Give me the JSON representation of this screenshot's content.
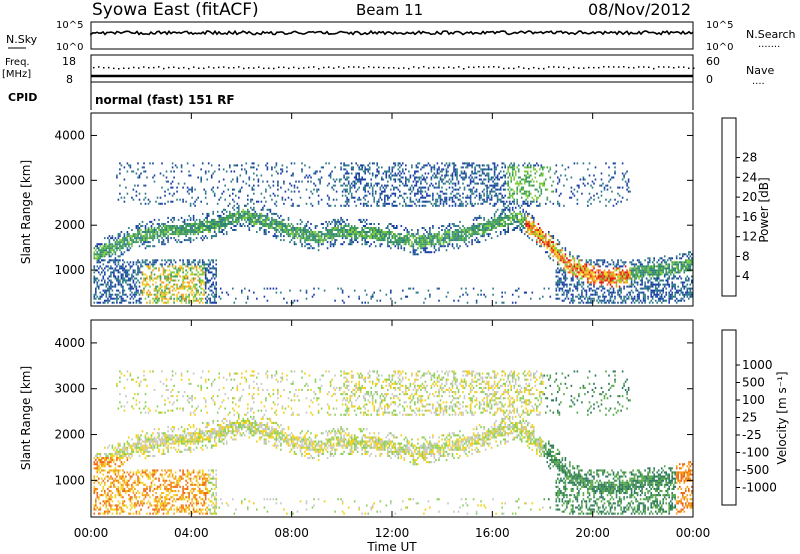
{
  "header": {
    "station": "Syowa East (fitACF)",
    "beam": "Beam 11",
    "date": "08/Nov/2012"
  },
  "panels": {
    "nsky": {
      "label": "N.Sky",
      "top_tick": "10^5",
      "bottom_tick": "10^0",
      "right_top": "10^5",
      "right_bottom": "10^0",
      "right_label": "N.Search",
      "right_dots": "......."
    },
    "freq": {
      "label_top": "Freq.",
      "label_bottom": "[MHz]",
      "top_tick": "18",
      "bottom_tick": "8",
      "right_top": "60",
      "right_bottom": "0",
      "right_label": "Nave",
      "right_dots": "...."
    },
    "cpid": {
      "label": "CPID",
      "value": "normal (fast) 151 RF"
    }
  },
  "chart_data": [
    {
      "type": "heatmap",
      "title": "",
      "xlabel": "Time UT",
      "ylabel": "Slant Range [km]",
      "x_ticks": [
        "00:00",
        "04:00",
        "08:00",
        "12:00",
        "16:00",
        "20:00",
        "00:00"
      ],
      "y_ticks": [
        "1000",
        "2000",
        "3000",
        "4000"
      ],
      "ylim": [
        200,
        4500
      ],
      "xlim_hours": [
        0,
        24
      ],
      "colorbar": {
        "label": "Power [dB]",
        "ticks": [
          "4",
          "8",
          "12",
          "16",
          "20",
          "24",
          "28"
        ],
        "colors": [
          "#0000ff",
          "#1a3fa6",
          "#2e7b86",
          "#3c9a5a",
          "#7ccc3a",
          "#f2d21a",
          "#f59a1a",
          "#ef5a1a",
          "#e01010"
        ]
      },
      "echo_band_range_km": [
        [
          0,
          1300
        ],
        [
          1,
          1500
        ],
        [
          2,
          1750
        ],
        [
          3,
          1850
        ],
        [
          4,
          1900
        ],
        [
          5,
          2000
        ],
        [
          6,
          2200
        ],
        [
          7,
          2050
        ],
        [
          8,
          1850
        ],
        [
          9,
          1700
        ],
        [
          10,
          1850
        ],
        [
          11,
          1800
        ],
        [
          12,
          1700
        ],
        [
          13,
          1600
        ],
        [
          14,
          1700
        ],
        [
          15,
          1800
        ],
        [
          16,
          2000
        ],
        [
          17,
          2150
        ],
        [
          18,
          1700
        ],
        [
          19,
          1100
        ],
        [
          20,
          850
        ],
        [
          21,
          800
        ],
        [
          22,
          950
        ],
        [
          23,
          1000
        ],
        [
          24,
          1100
        ]
      ]
    },
    {
      "type": "heatmap",
      "title": "",
      "xlabel": "Time UT",
      "ylabel": "Slant Range [km]",
      "x_ticks": [
        "00:00",
        "04:00",
        "08:00",
        "12:00",
        "16:00",
        "20:00",
        "00:00"
      ],
      "y_ticks": [
        "1000",
        "2000",
        "3000",
        "4000"
      ],
      "ylim": [
        200,
        4500
      ],
      "xlim_hours": [
        0,
        24
      ],
      "colorbar": {
        "label": "Velocity [m s⁻¹]",
        "ticks": [
          "1000",
          "500",
          "100",
          "25",
          "-25",
          "-100",
          "-500",
          "-1000"
        ],
        "colors": [
          "#1f3fb0",
          "#2c5aa0",
          "#2f7a5e",
          "#56a84a",
          "#8cd05a",
          "#c8c8c8",
          "#f2d21a",
          "#f5a21a",
          "#ef6a1a",
          "#e01010"
        ]
      }
    }
  ]
}
